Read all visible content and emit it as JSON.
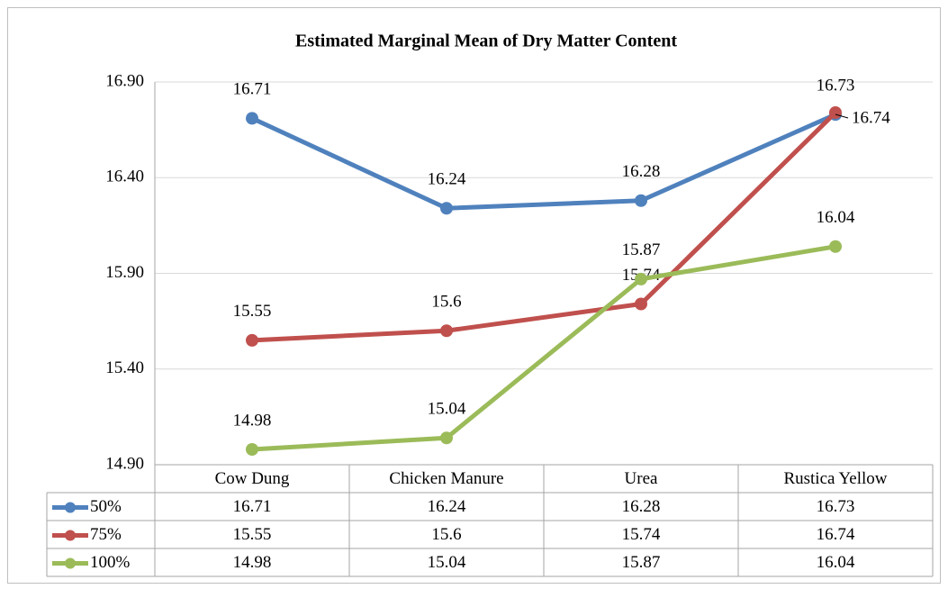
{
  "chart_data": {
    "type": "line",
    "title": "Estimated Marginal Mean of Dry Matter Content",
    "categories": [
      "Cow Dung",
      "Chicken Manure",
      "Urea",
      "Rustica Yellow"
    ],
    "series": [
      {
        "name": "50%",
        "color": "#4f81bd",
        "values": [
          16.71,
          16.24,
          16.28,
          16.73
        ]
      },
      {
        "name": "75%",
        "color": "#c0504d",
        "values": [
          15.55,
          15.6,
          15.74,
          16.74
        ]
      },
      {
        "name": "100%",
        "color": "#9bbb59",
        "values": [
          14.98,
          15.04,
          15.87,
          16.04
        ]
      }
    ],
    "ylim": [
      14.9,
      16.9
    ],
    "yticks": [
      {
        "value": 14.9,
        "label": "14.90"
      },
      {
        "value": 15.4,
        "label": "15.40"
      },
      {
        "value": 15.9,
        "label": "15.90"
      },
      {
        "value": 16.4,
        "label": "16.40"
      },
      {
        "value": 16.9,
        "label": "16.90"
      }
    ],
    "grid": true,
    "data_table": true
  }
}
